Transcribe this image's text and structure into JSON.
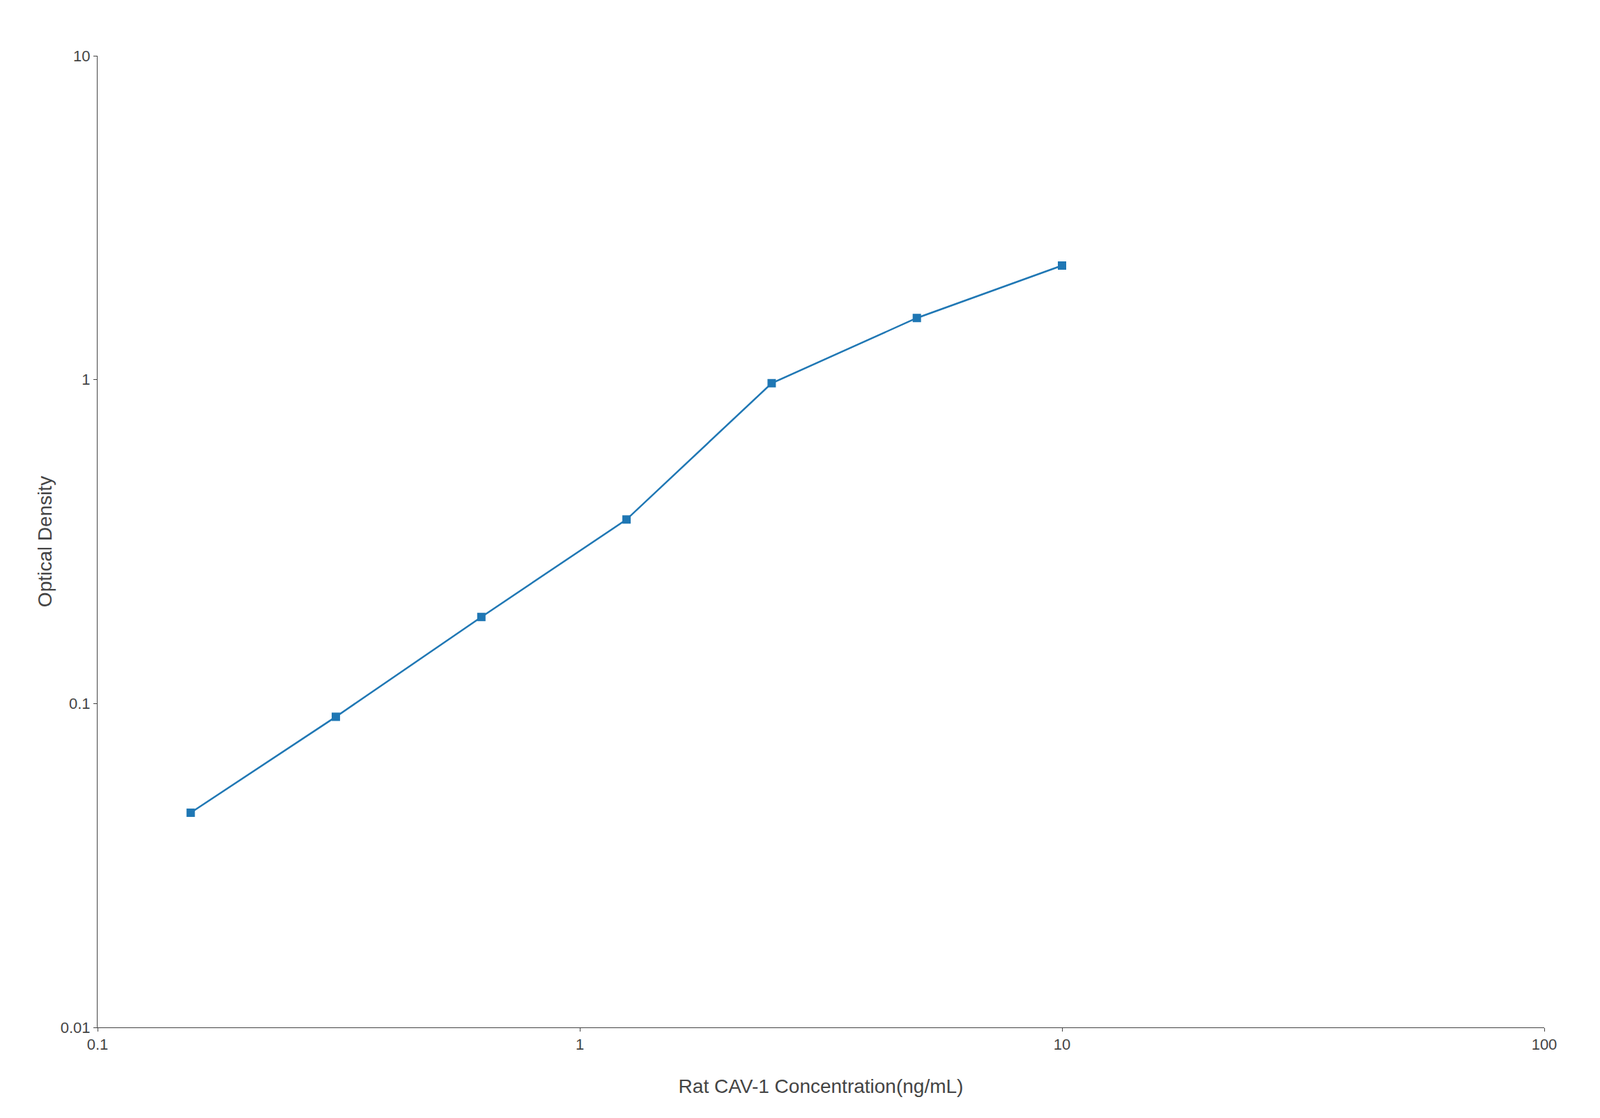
{
  "chart_data": {
    "type": "line",
    "x": [
      0.156,
      0.312,
      0.625,
      1.25,
      2.5,
      5.0,
      10.0
    ],
    "values": [
      0.046,
      0.091,
      0.185,
      0.37,
      0.975,
      1.55,
      2.25
    ],
    "xlabel": "Rat CAV-1 Concentration(ng/mL)",
    "ylabel": "Optical Density",
    "xlim": [
      0.1,
      100
    ],
    "ylim": [
      0.01,
      10
    ],
    "xticks": [
      0.1,
      1,
      10,
      100
    ],
    "yticks": [
      0.01,
      0.1,
      1,
      10
    ],
    "log": true,
    "grid": false,
    "marker": "square"
  }
}
